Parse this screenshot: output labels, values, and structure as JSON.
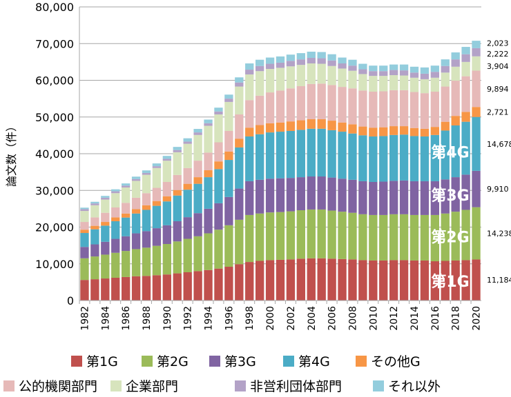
{
  "chart_data": {
    "type": "bar",
    "stacked": true,
    "title": "",
    "xlabel": "",
    "ylabel": "論文数（件）",
    "ylim": [
      0,
      80000
    ],
    "yticks": [
      "0",
      "10,000",
      "20,000",
      "30,000",
      "40,000",
      "50,000",
      "60,000",
      "70,000",
      "80,000"
    ],
    "grid": true,
    "legend_placement": "bottom",
    "categories": [
      1982,
      1983,
      1984,
      1985,
      1986,
      1987,
      1988,
      1989,
      1990,
      1991,
      1992,
      1993,
      1994,
      1995,
      1996,
      1997,
      1998,
      1999,
      2000,
      2001,
      2002,
      2003,
      2004,
      2005,
      2006,
      2007,
      2008,
      2009,
      2010,
      2011,
      2012,
      2013,
      2014,
      2015,
      2016,
      2017,
      2018,
      2019,
      2020
    ],
    "xtick_labels": [
      "1982",
      "1984",
      "1986",
      "1988",
      "1990",
      "1992",
      "1994",
      "1996",
      "1998",
      "2000",
      "2002",
      "2004",
      "2006",
      "2008",
      "2010",
      "2012",
      "2014",
      "2016",
      "2018",
      "2020"
    ],
    "series": [
      {
        "name": "第1G",
        "color": "#c0504d",
        "values": [
          5600,
          5800,
          6000,
          6200,
          6400,
          6600,
          6700,
          6900,
          7100,
          7400,
          7700,
          8000,
          8300,
          8700,
          9200,
          9900,
          10500,
          10800,
          11000,
          11100,
          11200,
          11400,
          11500,
          11500,
          11400,
          11300,
          11200,
          11000,
          10900,
          10900,
          11000,
          11000,
          10900,
          10900,
          10700,
          10800,
          10900,
          11000,
          11184
        ]
      },
      {
        "name": "第2G",
        "color": "#9bbb59",
        "values": [
          5900,
          6200,
          6500,
          6800,
          7100,
          7400,
          7700,
          8000,
          8300,
          8700,
          9100,
          9500,
          10000,
          10600,
          11300,
          12100,
          12800,
          12900,
          13000,
          13000,
          13100,
          13200,
          13300,
          13300,
          13100,
          12900,
          12700,
          12500,
          12400,
          12400,
          12500,
          12500,
          12400,
          12400,
          12600,
          12900,
          13300,
          13700,
          14238
        ]
      },
      {
        "name": "第3G",
        "color": "#8064a2",
        "values": [
          3100,
          3300,
          3500,
          3800,
          4000,
          4300,
          4500,
          4800,
          5100,
          5500,
          5900,
          6300,
          6700,
          7200,
          7700,
          8500,
          9200,
          9200,
          9200,
          9200,
          9100,
          9000,
          9000,
          9000,
          9000,
          9000,
          9000,
          9000,
          9000,
          9100,
          9100,
          9200,
          9200,
          9200,
          9200,
          9300,
          9400,
          9600,
          9910
        ]
      },
      {
        "name": "第4G",
        "color": "#4bacc6",
        "values": [
          3800,
          4100,
          4400,
          4800,
          5100,
          5400,
          5800,
          6100,
          6500,
          7000,
          7500,
          8000,
          8600,
          9300,
          10100,
          11200,
          12200,
          12400,
          12600,
          12700,
          12800,
          12900,
          13000,
          13000,
          12900,
          12800,
          12600,
          12500,
          12400,
          12400,
          12500,
          12500,
          12300,
          12200,
          12600,
          13300,
          14100,
          14400,
          14678
        ]
      },
      {
        "name": "その他G",
        "color": "#f79646",
        "values": [
          900,
          950,
          1000,
          1050,
          1100,
          1200,
          1250,
          1300,
          1400,
          1500,
          1600,
          1800,
          1900,
          2100,
          2300,
          2400,
          2400,
          2500,
          2500,
          2500,
          2600,
          2600,
          2600,
          2600,
          2600,
          2500,
          2500,
          2400,
          2400,
          2400,
          2400,
          2300,
          2200,
          2100,
          2200,
          2400,
          2600,
          2700,
          2721
        ]
      },
      {
        "name": "公的機関部門",
        "color": "#e6b9b8",
        "values": [
          2100,
          2300,
          2500,
          2700,
          2900,
          3100,
          3300,
          3600,
          3900,
          4100,
          4300,
          4500,
          4800,
          5200,
          5600,
          6600,
          7500,
          8000,
          8400,
          8700,
          9000,
          9300,
          9600,
          9700,
          9700,
          9700,
          9800,
          9800,
          9800,
          9800,
          9800,
          9800,
          9800,
          9700,
          9600,
          9600,
          9600,
          9700,
          9894
        ]
      },
      {
        "name": "企業部門",
        "color": "#d7e4bd",
        "values": [
          3000,
          3300,
          3600,
          3900,
          4200,
          4600,
          5000,
          5400,
          5800,
          6200,
          6600,
          7000,
          7300,
          7600,
          7900,
          7600,
          7000,
          6700,
          6400,
          6200,
          6000,
          5800,
          5600,
          5400,
          5200,
          5000,
          4800,
          4500,
          4300,
          4200,
          4100,
          4000,
          3900,
          3800,
          3800,
          3800,
          3800,
          3900,
          3904
        ]
      },
      {
        "name": "非営利団体部門",
        "color": "#b3a2c7",
        "values": [
          500,
          500,
          500,
          500,
          500,
          500,
          500,
          500,
          500,
          600,
          600,
          700,
          700,
          800,
          900,
          1100,
          1300,
          1400,
          1400,
          1400,
          1500,
          1500,
          1500,
          1500,
          1500,
          1400,
          1400,
          1300,
          1300,
          1300,
          1400,
          1400,
          1400,
          1500,
          1600,
          1800,
          2000,
          2100,
          2222
        ]
      },
      {
        "name": "それ以外",
        "color": "#93cddd",
        "values": [
          400,
          450,
          500,
          550,
          600,
          650,
          700,
          750,
          800,
          850,
          900,
          950,
          1000,
          1050,
          1100,
          1400,
          1700,
          1700,
          1700,
          1700,
          1700,
          1700,
          1700,
          1700,
          1700,
          1600,
          1600,
          1500,
          1500,
          1500,
          1500,
          1600,
          1600,
          1700,
          1700,
          1800,
          1900,
          2000,
          2023
        ]
      }
    ],
    "data_labels_2020": [
      "11,184",
      "14,238",
      "9,910",
      "14,678",
      "2,721",
      "9,894",
      "3,904",
      "2,222",
      "2,023"
    ],
    "annotations": [
      "第1G",
      "第2G",
      "第3G",
      "第4G"
    ]
  }
}
